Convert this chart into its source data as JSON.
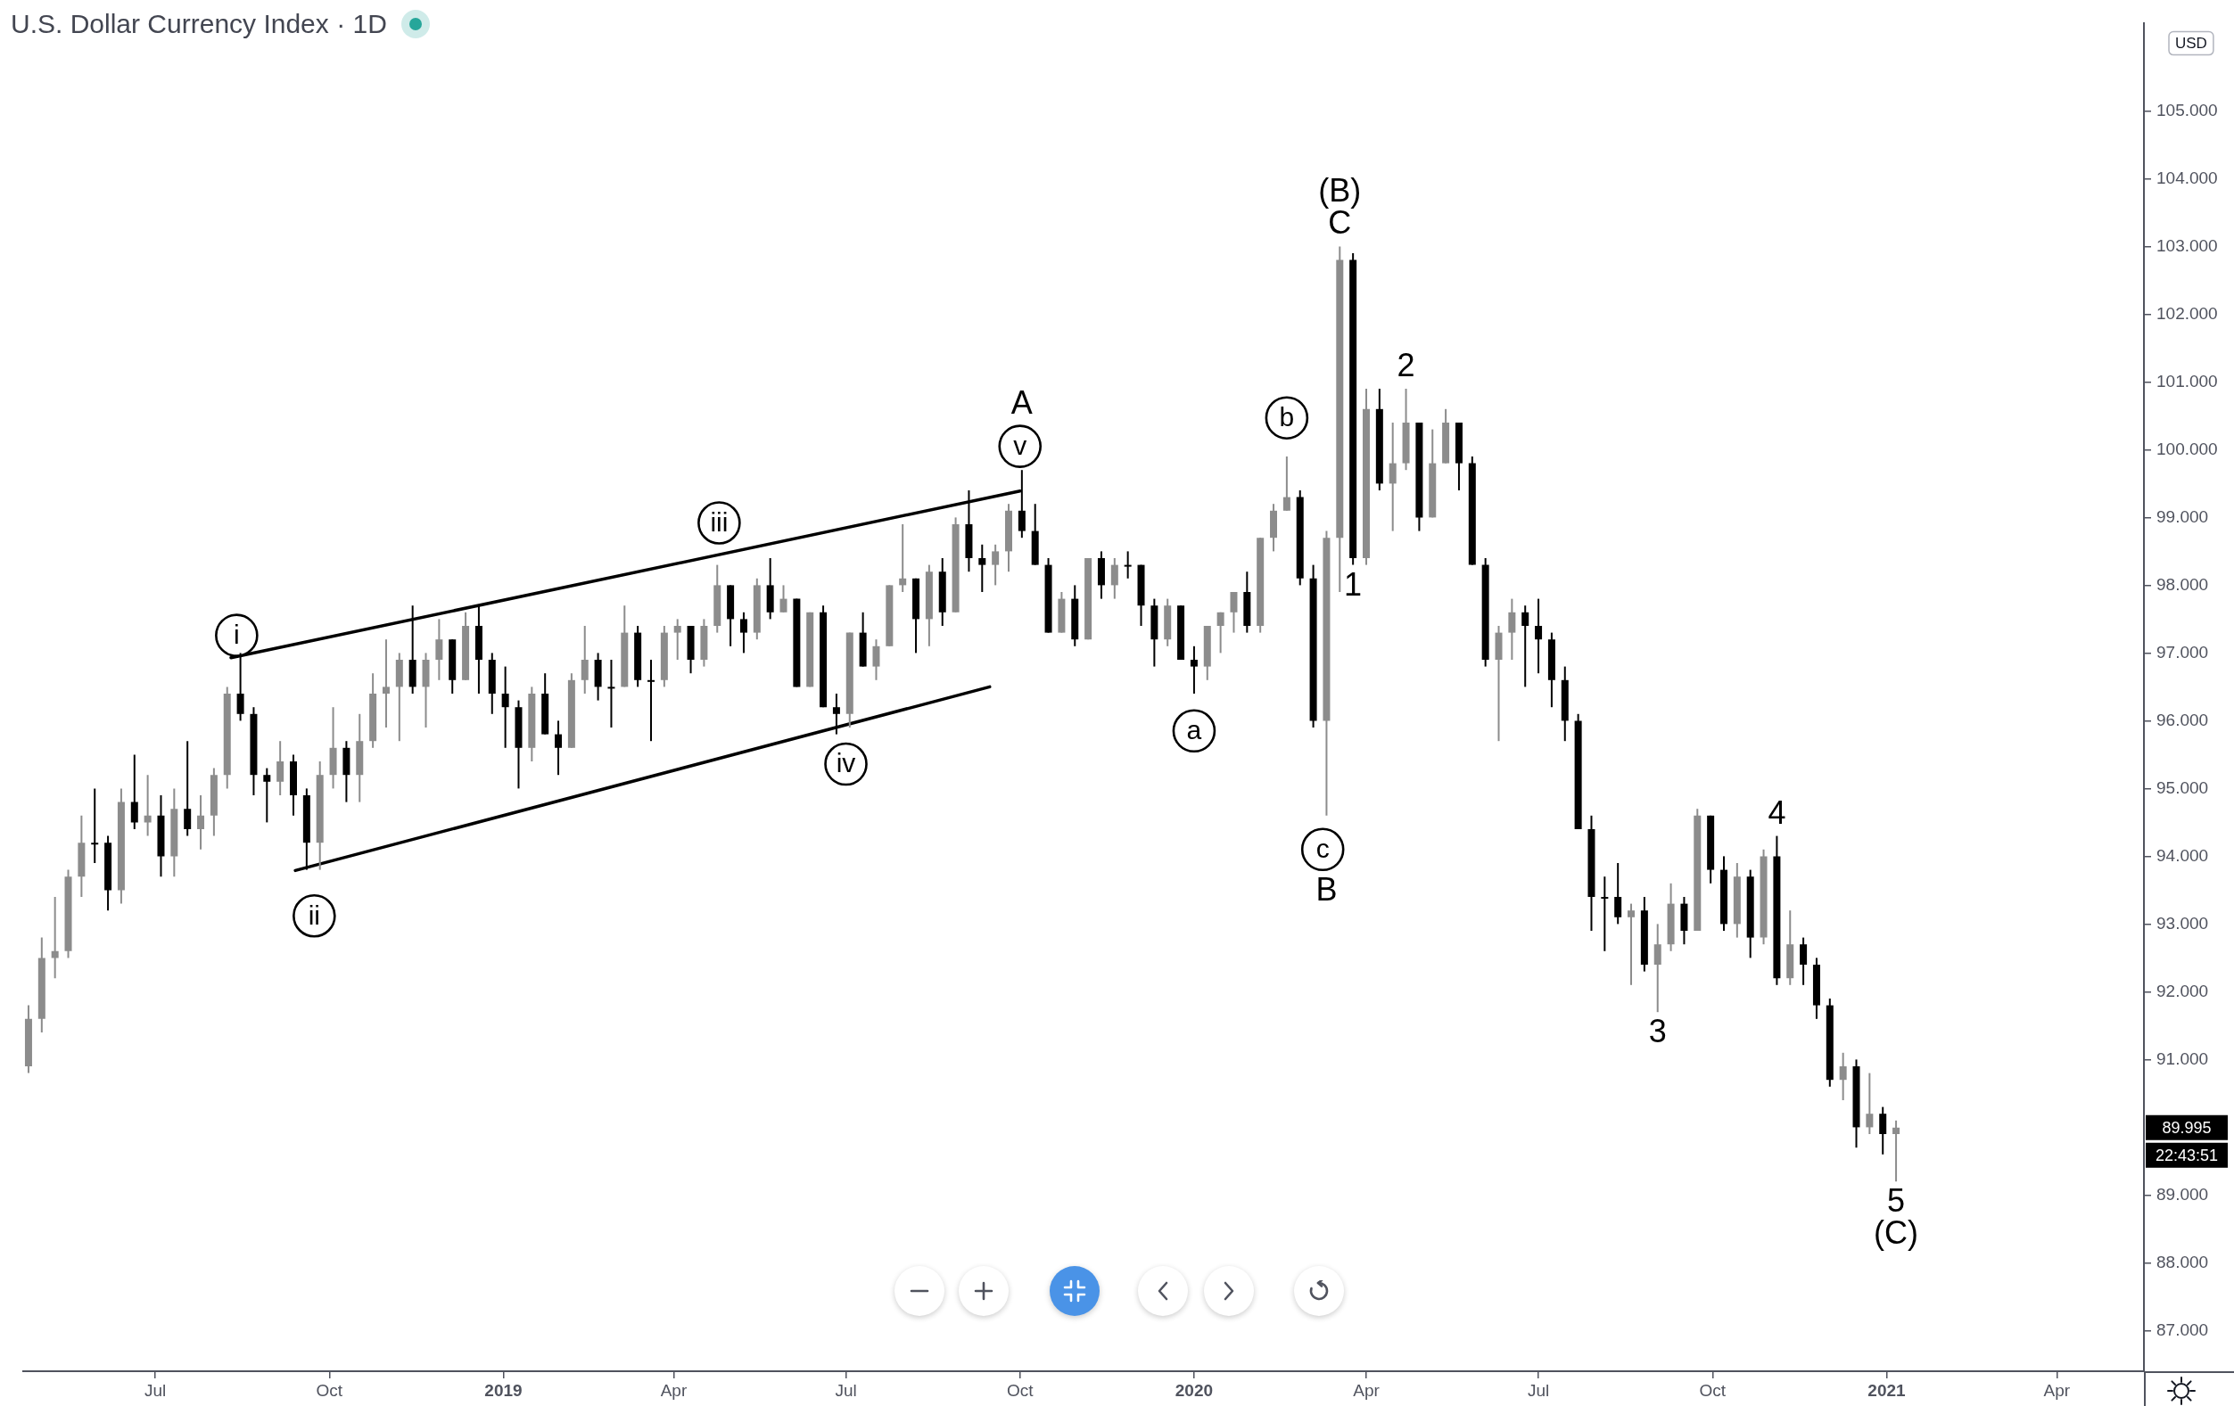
{
  "chart_data": {
    "type": "candlestick",
    "title": "U.S. Dollar Currency Index · 1D",
    "ylabel": "USD",
    "xlim": [
      "2018-04-22",
      "2021-05-17"
    ],
    "xticks": [
      {
        "value": "2018-07-01",
        "label": "Jul"
      },
      {
        "value": "2018-10-01",
        "label": "Oct"
      },
      {
        "value": "2019-01-01",
        "label": "2019"
      },
      {
        "value": "2019-04-01",
        "label": "Apr"
      },
      {
        "value": "2019-07-01",
        "label": "Jul"
      },
      {
        "value": "2019-10-01",
        "label": "Oct"
      },
      {
        "value": "2020-01-01",
        "label": "2020"
      },
      {
        "value": "2020-04-01",
        "label": "Apr"
      },
      {
        "value": "2020-07-01",
        "label": "Jul"
      },
      {
        "value": "2020-10-01",
        "label": "Oct"
      },
      {
        "value": "2021-01-01",
        "label": "2021"
      },
      {
        "value": "2021-04-01",
        "label": "Apr"
      }
    ],
    "ylim": [
      86.4,
      106.3
    ],
    "yticks": [
      {
        "value": 87,
        "label": "87.000"
      },
      {
        "value": 88,
        "label": "88.000"
      },
      {
        "value": 89,
        "label": "89.000"
      },
      {
        "value": 91,
        "label": "91.000"
      },
      {
        "value": 92,
        "label": "92.000"
      },
      {
        "value": 93,
        "label": "93.000"
      },
      {
        "value": 94,
        "label": "94.000"
      },
      {
        "value": 95,
        "label": "95.000"
      },
      {
        "value": 96,
        "label": "96.000"
      },
      {
        "value": 97,
        "label": "97.000"
      },
      {
        "value": 98,
        "label": "98.000"
      },
      {
        "value": 99,
        "label": "99.000"
      },
      {
        "value": 100,
        "label": "100.000"
      },
      {
        "value": 101,
        "label": "101.000"
      },
      {
        "value": 102,
        "label": "102.000"
      },
      {
        "value": 103,
        "label": "103.000"
      },
      {
        "value": 104,
        "label": "104.000"
      },
      {
        "value": 105,
        "label": "105.000"
      }
    ],
    "x": [
      "2018-04-25",
      "2018-05-02",
      "2018-05-09",
      "2018-05-16",
      "2018-05-23",
      "2018-05-30",
      "2018-06-06",
      "2018-06-13",
      "2018-06-20",
      "2018-06-27",
      "2018-07-04",
      "2018-07-11",
      "2018-07-18",
      "2018-07-25",
      "2018-08-01",
      "2018-08-08",
      "2018-08-15",
      "2018-08-22",
      "2018-08-29",
      "2018-09-05",
      "2018-09-12",
      "2018-09-19",
      "2018-09-26",
      "2018-10-03",
      "2018-10-10",
      "2018-10-17",
      "2018-10-24",
      "2018-10-31",
      "2018-11-07",
      "2018-11-14",
      "2018-11-21",
      "2018-11-28",
      "2018-12-05",
      "2018-12-12",
      "2018-12-19",
      "2018-12-26",
      "2019-01-02",
      "2019-01-09",
      "2019-01-16",
      "2019-01-23",
      "2019-01-30",
      "2019-02-06",
      "2019-02-13",
      "2019-02-20",
      "2019-02-27",
      "2019-03-06",
      "2019-03-13",
      "2019-03-20",
      "2019-03-27",
      "2019-04-03",
      "2019-04-10",
      "2019-04-17",
      "2019-04-24",
      "2019-05-01",
      "2019-05-08",
      "2019-05-15",
      "2019-05-22",
      "2019-05-29",
      "2019-06-05",
      "2019-06-12",
      "2019-06-19",
      "2019-06-26",
      "2019-07-03",
      "2019-07-10",
      "2019-07-17",
      "2019-07-24",
      "2019-07-31",
      "2019-08-07",
      "2019-08-14",
      "2019-08-21",
      "2019-08-28",
      "2019-09-04",
      "2019-09-11",
      "2019-09-18",
      "2019-09-25",
      "2019-10-02",
      "2019-10-09",
      "2019-10-16",
      "2019-10-23",
      "2019-10-30",
      "2019-11-06",
      "2019-11-13",
      "2019-11-20",
      "2019-11-27",
      "2019-12-04",
      "2019-12-11",
      "2019-12-18",
      "2019-12-25",
      "2020-01-01",
      "2020-01-08",
      "2020-01-15",
      "2020-01-22",
      "2020-01-29",
      "2020-02-05",
      "2020-02-12",
      "2020-02-19",
      "2020-02-26",
      "2020-03-04",
      "2020-03-11",
      "2020-03-18",
      "2020-03-25",
      "2020-04-01",
      "2020-04-08",
      "2020-04-15",
      "2020-04-22",
      "2020-04-29",
      "2020-05-06",
      "2020-05-13",
      "2020-05-20",
      "2020-05-27",
      "2020-06-03",
      "2020-06-10",
      "2020-06-17",
      "2020-06-24",
      "2020-07-01",
      "2020-07-08",
      "2020-07-15",
      "2020-07-22",
      "2020-07-29",
      "2020-08-05",
      "2020-08-12",
      "2020-08-19",
      "2020-08-26",
      "2020-09-02",
      "2020-09-09",
      "2020-09-16",
      "2020-09-23",
      "2020-09-30",
      "2020-10-07",
      "2020-10-14",
      "2020-10-21",
      "2020-10-28",
      "2020-11-04",
      "2020-11-11",
      "2020-11-18",
      "2020-11-25",
      "2020-12-02",
      "2020-12-09",
      "2020-12-16",
      "2020-12-23",
      "2020-12-30",
      "2021-01-06"
    ],
    "ohlc": [
      [
        90.9,
        91.8,
        90.8,
        91.6
      ],
      [
        91.6,
        92.8,
        91.4,
        92.5
      ],
      [
        92.5,
        93.4,
        92.2,
        92.6
      ],
      [
        92.6,
        93.8,
        92.5,
        93.7
      ],
      [
        93.7,
        94.6,
        93.4,
        94.2
      ],
      [
        94.2,
        95.0,
        93.9,
        94.2
      ],
      [
        94.2,
        94.3,
        93.2,
        93.5
      ],
      [
        93.5,
        95.0,
        93.3,
        94.8
      ],
      [
        94.8,
        95.5,
        94.4,
        94.5
      ],
      [
        94.5,
        95.2,
        94.3,
        94.6
      ],
      [
        94.6,
        94.9,
        93.7,
        94.0
      ],
      [
        94.0,
        95.0,
        93.7,
        94.7
      ],
      [
        94.7,
        95.7,
        94.3,
        94.4
      ],
      [
        94.4,
        94.9,
        94.1,
        94.6
      ],
      [
        94.6,
        95.3,
        94.3,
        95.2
      ],
      [
        95.2,
        96.5,
        95.0,
        96.4
      ],
      [
        96.4,
        97.0,
        96.0,
        96.1
      ],
      [
        96.1,
        96.2,
        94.9,
        95.2
      ],
      [
        95.2,
        95.3,
        94.5,
        95.1
      ],
      [
        95.1,
        95.7,
        94.9,
        95.4
      ],
      [
        95.4,
        95.5,
        94.6,
        94.9
      ],
      [
        94.9,
        95.0,
        93.8,
        94.2
      ],
      [
        94.2,
        95.4,
        93.8,
        95.2
      ],
      [
        95.2,
        96.2,
        95.0,
        95.6
      ],
      [
        95.6,
        95.7,
        94.8,
        95.2
      ],
      [
        95.2,
        96.1,
        94.8,
        95.7
      ],
      [
        95.7,
        96.7,
        95.6,
        96.4
      ],
      [
        96.4,
        97.2,
        95.9,
        96.5
      ],
      [
        96.5,
        97.0,
        95.7,
        96.9
      ],
      [
        96.9,
        97.7,
        96.4,
        96.5
      ],
      [
        96.5,
        97.0,
        95.9,
        96.9
      ],
      [
        96.9,
        97.5,
        96.6,
        97.2
      ],
      [
        97.2,
        97.2,
        96.4,
        96.6
      ],
      [
        96.6,
        97.6,
        96.6,
        97.4
      ],
      [
        97.4,
        97.7,
        96.4,
        96.9
      ],
      [
        96.9,
        97.0,
        96.1,
        96.4
      ],
      [
        96.4,
        96.8,
        95.6,
        96.2
      ],
      [
        96.2,
        96.3,
        95.0,
        95.6
      ],
      [
        95.6,
        96.5,
        95.4,
        96.4
      ],
      [
        96.4,
        96.7,
        95.8,
        95.8
      ],
      [
        95.8,
        96.0,
        95.2,
        95.6
      ],
      [
        95.6,
        96.7,
        95.6,
        96.6
      ],
      [
        96.6,
        97.4,
        96.4,
        96.9
      ],
      [
        96.9,
        97.0,
        96.3,
        96.5
      ],
      [
        96.5,
        96.9,
        95.9,
        96.5
      ],
      [
        96.5,
        97.7,
        96.5,
        97.3
      ],
      [
        97.3,
        97.4,
        96.5,
        96.6
      ],
      [
        96.6,
        96.9,
        95.7,
        96.6
      ],
      [
        96.6,
        97.4,
        96.5,
        97.3
      ],
      [
        97.3,
        97.5,
        96.9,
        97.4
      ],
      [
        97.4,
        97.4,
        96.7,
        96.9
      ],
      [
        96.9,
        97.5,
        96.8,
        97.4
      ],
      [
        97.4,
        98.3,
        97.3,
        98.0
      ],
      [
        98.0,
        98.0,
        97.1,
        97.5
      ],
      [
        97.5,
        97.6,
        97.0,
        97.3
      ],
      [
        97.3,
        98.1,
        97.2,
        98.0
      ],
      [
        98.0,
        98.4,
        97.5,
        97.6
      ],
      [
        97.6,
        98.0,
        97.6,
        97.8
      ],
      [
        97.8,
        97.8,
        96.5,
        96.5
      ],
      [
        96.5,
        97.6,
        96.5,
        97.6
      ],
      [
        97.6,
        97.7,
        96.2,
        96.2
      ],
      [
        96.2,
        96.4,
        95.8,
        96.1
      ],
      [
        96.1,
        97.3,
        95.9,
        97.3
      ],
      [
        97.3,
        97.6,
        96.8,
        96.8
      ],
      [
        96.8,
        97.2,
        96.6,
        97.1
      ],
      [
        97.1,
        98.0,
        97.1,
        98.0
      ],
      [
        98.0,
        98.9,
        97.9,
        98.1
      ],
      [
        98.1,
        98.1,
        97.0,
        97.5
      ],
      [
        97.5,
        98.3,
        97.1,
        98.2
      ],
      [
        98.2,
        98.4,
        97.4,
        97.6
      ],
      [
        97.6,
        99.0,
        97.6,
        98.9
      ],
      [
        98.9,
        99.4,
        98.2,
        98.4
      ],
      [
        98.4,
        98.6,
        97.9,
        98.3
      ],
      [
        98.3,
        98.6,
        98.0,
        98.5
      ],
      [
        98.5,
        99.2,
        98.2,
        99.1
      ],
      [
        99.1,
        99.7,
        98.7,
        98.8
      ],
      [
        98.8,
        99.2,
        98.3,
        98.3
      ],
      [
        98.3,
        98.4,
        97.3,
        97.3
      ],
      [
        97.3,
        97.9,
        97.3,
        97.8
      ],
      [
        97.8,
        98.0,
        97.1,
        97.2
      ],
      [
        97.2,
        98.4,
        97.2,
        98.4
      ],
      [
        98.4,
        98.5,
        97.8,
        98.0
      ],
      [
        98.0,
        98.4,
        97.8,
        98.3
      ],
      [
        98.3,
        98.5,
        98.1,
        98.3
      ],
      [
        98.3,
        98.3,
        97.4,
        97.7
      ],
      [
        97.7,
        97.8,
        96.8,
        97.2
      ],
      [
        97.2,
        97.8,
        97.1,
        97.7
      ],
      [
        97.7,
        97.7,
        96.9,
        96.9
      ],
      [
        96.9,
        97.1,
        96.4,
        96.8
      ],
      [
        96.8,
        97.4,
        96.6,
        97.4
      ],
      [
        97.4,
        97.6,
        97.0,
        97.6
      ],
      [
        97.6,
        97.9,
        97.3,
        97.9
      ],
      [
        97.9,
        98.2,
        97.3,
        97.4
      ],
      [
        97.4,
        98.7,
        97.3,
        98.7
      ],
      [
        98.7,
        99.2,
        98.5,
        99.1
      ],
      [
        99.1,
        99.9,
        99.1,
        99.3
      ],
      [
        99.3,
        99.4,
        98.0,
        98.1
      ],
      [
        98.1,
        98.3,
        95.9,
        96.0
      ],
      [
        96.0,
        98.8,
        94.6,
        98.7
      ],
      [
        98.7,
        103.0,
        97.9,
        102.8
      ],
      [
        102.8,
        102.9,
        98.3,
        98.4
      ],
      [
        98.4,
        100.9,
        98.3,
        100.6
      ],
      [
        100.6,
        100.9,
        99.4,
        99.5
      ],
      [
        99.5,
        100.4,
        98.8,
        99.8
      ],
      [
        99.8,
        100.9,
        99.7,
        100.4
      ],
      [
        100.4,
        100.4,
        98.8,
        99.0
      ],
      [
        99.0,
        100.3,
        99.0,
        99.8
      ],
      [
        99.8,
        100.6,
        99.8,
        100.4
      ],
      [
        100.4,
        100.4,
        99.4,
        99.8
      ],
      [
        99.8,
        99.9,
        98.3,
        98.3
      ],
      [
        98.3,
        98.4,
        96.8,
        96.9
      ],
      [
        96.9,
        97.4,
        95.7,
        97.3
      ],
      [
        97.3,
        97.8,
        96.9,
        97.6
      ],
      [
        97.6,
        97.7,
        96.5,
        97.4
      ],
      [
        97.4,
        97.8,
        96.7,
        97.2
      ],
      [
        97.2,
        97.3,
        96.2,
        96.6
      ],
      [
        96.6,
        96.8,
        95.7,
        96.0
      ],
      [
        96.0,
        96.1,
        94.4,
        94.4
      ],
      [
        94.4,
        94.6,
        92.9,
        93.4
      ],
      [
        93.4,
        93.7,
        92.6,
        93.4
      ],
      [
        93.4,
        93.9,
        93.0,
        93.1
      ],
      [
        93.1,
        93.3,
        92.1,
        93.2
      ],
      [
        93.2,
        93.4,
        92.3,
        92.4
      ],
      [
        92.4,
        93.0,
        91.7,
        92.7
      ],
      [
        92.7,
        93.6,
        92.6,
        93.3
      ],
      [
        93.3,
        93.4,
        92.7,
        92.9
      ],
      [
        92.9,
        94.7,
        92.9,
        94.6
      ],
      [
        94.6,
        94.6,
        93.6,
        93.8
      ],
      [
        93.8,
        94.0,
        92.9,
        93.0
      ],
      [
        93.0,
        93.9,
        92.8,
        93.7
      ],
      [
        93.7,
        93.8,
        92.5,
        92.8
      ],
      [
        92.8,
        94.1,
        92.7,
        94.0
      ],
      [
        94.0,
        94.3,
        92.1,
        92.2
      ],
      [
        92.2,
        93.2,
        92.1,
        92.7
      ],
      [
        92.7,
        92.8,
        92.1,
        92.4
      ],
      [
        92.4,
        92.5,
        91.6,
        91.8
      ],
      [
        91.8,
        91.9,
        90.6,
        90.7
      ],
      [
        90.7,
        91.1,
        90.4,
        90.9
      ],
      [
        90.9,
        91.0,
        89.7,
        90.0
      ],
      [
        90.0,
        90.8,
        89.9,
        90.2
      ],
      [
        90.2,
        90.3,
        89.6,
        89.9
      ],
      [
        89.9,
        90.1,
        89.2,
        89.995
      ]
    ],
    "colors": [
      "#8c8c8c",
      "#8c8c8c",
      "#8c8c8c",
      "#8c8c8c",
      "#8c8c8c",
      "#000000",
      "#000000",
      "#8c8c8c",
      "#000000",
      "#8c8c8c",
      "#000000",
      "#8c8c8c",
      "#000000",
      "#8c8c8c",
      "#8c8c8c",
      "#8c8c8c",
      "#000000",
      "#000000",
      "#000000",
      "#8c8c8c",
      "#000000",
      "#000000",
      "#8c8c8c",
      "#8c8c8c",
      "#000000",
      "#8c8c8c",
      "#8c8c8c",
      "#8c8c8c",
      "#8c8c8c",
      "#000000",
      "#8c8c8c",
      "#8c8c8c",
      "#000000",
      "#8c8c8c",
      "#000000",
      "#000000",
      "#000000",
      "#000000",
      "#8c8c8c",
      "#000000",
      "#000000",
      "#8c8c8c",
      "#8c8c8c",
      "#000000",
      "#000000",
      "#8c8c8c",
      "#000000",
      "#000000",
      "#8c8c8c",
      "#8c8c8c",
      "#000000",
      "#8c8c8c",
      "#8c8c8c",
      "#000000",
      "#000000",
      "#8c8c8c",
      "#000000",
      "#8c8c8c",
      "#000000",
      "#8c8c8c",
      "#000000",
      "#000000",
      "#8c8c8c",
      "#000000",
      "#8c8c8c",
      "#8c8c8c",
      "#8c8c8c",
      "#000000",
      "#8c8c8c",
      "#000000",
      "#8c8c8c",
      "#000000",
      "#000000",
      "#8c8c8c",
      "#8c8c8c",
      "#000000",
      "#000000",
      "#000000",
      "#8c8c8c",
      "#000000",
      "#8c8c8c",
      "#000000",
      "#8c8c8c",
      "#000000",
      "#000000",
      "#000000",
      "#8c8c8c",
      "#000000",
      "#000000",
      "#8c8c8c",
      "#8c8c8c",
      "#8c8c8c",
      "#000000",
      "#8c8c8c",
      "#8c8c8c",
      "#8c8c8c",
      "#000000",
      "#000000",
      "#8c8c8c",
      "#8c8c8c",
      "#000000",
      "#8c8c8c",
      "#000000",
      "#8c8c8c",
      "#8c8c8c",
      "#000000",
      "#8c8c8c",
      "#8c8c8c",
      "#000000",
      "#000000",
      "#000000",
      "#8c8c8c",
      "#8c8c8c",
      "#000000",
      "#000000",
      "#000000",
      "#000000",
      "#000000",
      "#000000",
      "#000000",
      "#000000",
      "#8c8c8c",
      "#000000",
      "#8c8c8c",
      "#8c8c8c",
      "#000000",
      "#8c8c8c",
      "#000000",
      "#000000",
      "#8c8c8c",
      "#000000",
      "#8c8c8c",
      "#000000",
      "#8c8c8c",
      "#000000",
      "#000000",
      "#000000",
      "#8c8c8c",
      "#000000",
      "#8c8c8c",
      "#000000",
      "#8c8c8c"
    ],
    "series": [
      {
        "type": "line",
        "color": "#000000",
        "x": [
          "2018-08-10",
          "2019-10-01"
        ],
        "values": [
          96.93,
          99.39
        ]
      },
      {
        "type": "line",
        "color": "#000000",
        "x": [
          "2018-09-13",
          "2019-09-15"
        ],
        "values": [
          93.79,
          96.5
        ]
      },
      {
        "type": "scatter",
        "color": "#000000",
        "marker": "circle",
        "x": [
          "2018-08-13",
          "2018-09-23",
          "2019-04-25",
          "2019-07-01",
          "2019-10-01",
          "2020-01-01",
          "2020-02-19",
          "2020-03-09"
        ],
        "values": [
          97.26,
          93.12,
          98.92,
          95.36,
          100.05,
          95.85,
          100.47,
          94.1
        ],
        "value_labels": [
          "i",
          "ii",
          "iii",
          "iv",
          "v",
          "a",
          "b",
          "c"
        ]
      }
    ],
    "annotations": [
      {
        "text": "A",
        "x": "2019-10-02",
        "y": 99.7
      },
      {
        "text": "(B)",
        "x": "2020-03-18",
        "y": 103.0
      },
      {
        "text": "C",
        "x": "2020-03-18",
        "y": 103.0
      },
      {
        "text": "B",
        "x": "2020-03-11",
        "y": 94.6
      },
      {
        "text": "1",
        "x": "2020-03-25",
        "y": 98.3
      },
      {
        "text": "2",
        "x": "2020-04-22",
        "y": 100.9
      },
      {
        "text": "3",
        "x": "2020-09-02",
        "y": 91.7
      },
      {
        "text": "4",
        "x": "2020-11-04",
        "y": 94.3
      },
      {
        "text": "5",
        "x": "2021-01-06",
        "y": 89.2
      },
      {
        "text": "(C)",
        "x": "2021-01-06",
        "y": 89.2
      },
      "89.995",
      "22:43:51"
    ]
  }
}
